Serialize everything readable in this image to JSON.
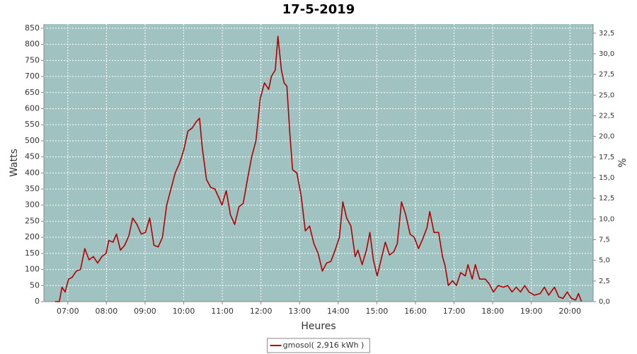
{
  "chart_data": {
    "type": "line",
    "title": "17-5-2019",
    "x_label": "Heures",
    "y_label": "Watts",
    "y2_label": "%",
    "x": [
      6.67,
      6.78,
      6.85,
      6.93,
      7.02,
      7.11,
      7.22,
      7.33,
      7.44,
      7.55,
      7.66,
      7.77,
      7.88,
      7.99,
      8.06,
      8.17,
      8.26,
      8.36,
      8.47,
      8.58,
      8.68,
      8.79,
      8.9,
      9.01,
      9.12,
      9.23,
      9.34,
      9.45,
      9.56,
      9.67,
      9.78,
      9.89,
      10.0,
      10.11,
      10.22,
      10.33,
      10.41,
      10.48,
      10.59,
      10.7,
      10.81,
      10.92,
      10.99,
      11.1,
      11.21,
      11.32,
      11.43,
      11.54,
      11.65,
      11.76,
      11.87,
      11.98,
      12.09,
      12.2,
      12.27,
      12.37,
      12.44,
      12.53,
      12.6,
      12.67,
      12.75,
      12.82,
      12.93,
      13.04,
      13.15,
      13.26,
      13.37,
      13.48,
      13.59,
      13.7,
      13.81,
      13.92,
      14.03,
      14.12,
      14.22,
      14.33,
      14.44,
      14.51,
      14.62,
      14.73,
      14.82,
      14.91,
      15.01,
      15.13,
      15.22,
      15.33,
      15.44,
      15.53,
      15.64,
      15.75,
      15.86,
      15.97,
      16.08,
      16.19,
      16.3,
      16.37,
      16.48,
      16.6,
      16.7,
      16.77,
      16.85,
      16.96,
      17.06,
      17.17,
      17.29,
      17.36,
      17.47,
      17.55,
      17.66,
      17.81,
      17.91,
      18.02,
      18.14,
      18.28,
      18.39,
      18.5,
      18.61,
      18.72,
      18.83,
      18.94,
      19.08,
      19.23,
      19.34,
      19.45,
      19.6,
      19.71,
      19.82,
      19.93,
      20.04,
      20.15,
      20.22,
      20.3
    ],
    "series": [
      {
        "name": "gmosol( 2,916 kWh )",
        "color": "#b00000",
        "values": [
          0,
          0,
          45,
          30,
          70,
          75,
          95,
          100,
          165,
          130,
          140,
          120,
          140,
          150,
          190,
          185,
          210,
          160,
          175,
          205,
          260,
          240,
          210,
          215,
          260,
          175,
          170,
          200,
          300,
          350,
          400,
          430,
          470,
          530,
          540,
          560,
          570,
          480,
          380,
          355,
          350,
          320,
          300,
          345,
          270,
          240,
          295,
          305,
          380,
          450,
          500,
          630,
          680,
          660,
          700,
          720,
          825,
          720,
          680,
          670,
          520,
          410,
          400,
          330,
          220,
          235,
          180,
          150,
          95,
          120,
          125,
          160,
          200,
          310,
          260,
          235,
          140,
          160,
          115,
          160,
          215,
          130,
          80,
          140,
          185,
          145,
          155,
          180,
          310,
          270,
          210,
          200,
          165,
          195,
          230,
          280,
          215,
          215,
          140,
          110,
          50,
          65,
          50,
          90,
          80,
          115,
          70,
          115,
          70,
          70,
          55,
          30,
          50,
          45,
          50,
          30,
          45,
          30,
          50,
          30,
          20,
          25,
          45,
          20,
          45,
          15,
          10,
          30,
          10,
          5,
          25,
          0
        ]
      }
    ],
    "xlim": [
      6.38,
      20.6
    ],
    "xticks": [
      {
        "value": 7,
        "label": "07:00"
      },
      {
        "value": 8,
        "label": "08:00"
      },
      {
        "value": 9,
        "label": "09:00"
      },
      {
        "value": 10,
        "label": "10:00"
      },
      {
        "value": 11,
        "label": "11:00"
      },
      {
        "value": 12,
        "label": "12:00"
      },
      {
        "value": 13,
        "label": "13:00"
      },
      {
        "value": 14,
        "label": "14:00"
      },
      {
        "value": 15,
        "label": "15:00"
      },
      {
        "value": 16,
        "label": "16:00"
      },
      {
        "value": 17,
        "label": "17:00"
      },
      {
        "value": 18,
        "label": "18:00"
      },
      {
        "value": 19,
        "label": "19:00"
      },
      {
        "value": 20,
        "label": "20:00"
      }
    ],
    "ylim": [
      0,
      863
    ],
    "yticks": [
      0,
      50,
      100,
      150,
      200,
      250,
      300,
      350,
      400,
      450,
      500,
      550,
      600,
      650,
      700,
      750,
      800,
      850
    ],
    "y2lim": [
      0,
      33.6
    ],
    "y2ticks": [
      {
        "value": 0,
        "label": "0,0"
      },
      {
        "value": 2.5,
        "label": "2,5"
      },
      {
        "value": 5,
        "label": "5,0"
      },
      {
        "value": 7.5,
        "label": "7,5"
      },
      {
        "value": 10,
        "label": "10,0"
      },
      {
        "value": 12.5,
        "label": "12,5"
      },
      {
        "value": 15,
        "label": "15,0"
      },
      {
        "value": 17.5,
        "label": "17,5"
      },
      {
        "value": 20,
        "label": "20,0"
      },
      {
        "value": 22.5,
        "label": "22,5"
      },
      {
        "value": 25,
        "label": "25,0"
      },
      {
        "value": 27.5,
        "label": "27,5"
      },
      {
        "value": 30,
        "label": "30,0"
      },
      {
        "value": 32.5,
        "label": "32,5"
      }
    ],
    "grid": true,
    "plot_background": "#a0c2c1",
    "legend": "bottom"
  }
}
